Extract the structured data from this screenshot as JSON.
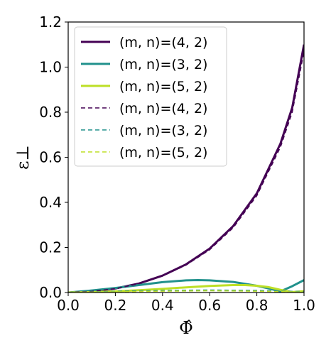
{
  "chart_data": {
    "type": "line",
    "xlabel": "Φ̂",
    "ylabel": "ε⊥",
    "xlim": [
      0.0,
      1.0
    ],
    "ylim": [
      0.0,
      1.2
    ],
    "xticks": [
      "0.0",
      "0.2",
      "0.4",
      "0.6",
      "0.8",
      "1.0"
    ],
    "yticks": [
      "0.0",
      "0.2",
      "0.4",
      "0.6",
      "0.8",
      "1.0",
      "1.2"
    ],
    "grid": false,
    "legend_position": "top-left",
    "series": [
      {
        "name": "(m, n)=(4, 2)",
        "style": "solid",
        "color": "#440154",
        "x": [
          0.0,
          0.1,
          0.2,
          0.3,
          0.4,
          0.5,
          0.6,
          0.7,
          0.8,
          0.9,
          0.95,
          1.0
        ],
        "y": [
          0.0,
          0.005,
          0.018,
          0.04,
          0.075,
          0.125,
          0.195,
          0.295,
          0.44,
          0.66,
          0.82,
          1.1
        ]
      },
      {
        "name": "(m, n)=(3, 2)",
        "style": "solid",
        "color": "#21918c",
        "x": [
          0.0,
          0.1,
          0.2,
          0.3,
          0.4,
          0.5,
          0.55,
          0.6,
          0.7,
          0.8,
          0.85,
          0.9,
          0.95,
          1.0
        ],
        "y": [
          0.0,
          0.009,
          0.02,
          0.033,
          0.046,
          0.054,
          0.055,
          0.054,
          0.047,
          0.03,
          0.018,
          0.005,
          0.028,
          0.055
        ]
      },
      {
        "name": "(m, n)=(5, 2)",
        "style": "solid",
        "color": "#bddf26",
        "x": [
          0.0,
          0.1,
          0.2,
          0.3,
          0.4,
          0.5,
          0.6,
          0.7,
          0.75,
          0.8,
          0.85,
          0.9,
          0.95,
          1.0
        ],
        "y": [
          0.0,
          0.002,
          0.005,
          0.01,
          0.016,
          0.023,
          0.029,
          0.033,
          0.033,
          0.03,
          0.024,
          0.012,
          0.002,
          0.006
        ]
      },
      {
        "name": "(m, n)=(4, 2)",
        "style": "dashed",
        "color": "#440154",
        "x": [
          0.0,
          0.1,
          0.2,
          0.3,
          0.4,
          0.5,
          0.6,
          0.7,
          0.8,
          0.9,
          0.95,
          1.0
        ],
        "y": [
          0.0,
          0.005,
          0.017,
          0.039,
          0.073,
          0.122,
          0.19,
          0.288,
          0.43,
          0.645,
          0.8,
          1.07
        ]
      },
      {
        "name": "(m, n)=(3, 2)",
        "style": "dashed",
        "color": "#21918c",
        "x": [
          0.0,
          0.2,
          0.4,
          0.6,
          0.8,
          0.9,
          1.0
        ],
        "y": [
          0.0,
          0.005,
          0.009,
          0.011,
          0.009,
          0.006,
          0.004
        ]
      },
      {
        "name": "(m, n)=(5, 2)",
        "style": "dashed",
        "color": "#bddf26",
        "x": [
          0.0,
          0.2,
          0.4,
          0.6,
          0.8,
          0.9,
          1.0
        ],
        "y": [
          0.0,
          0.003,
          0.006,
          0.008,
          0.006,
          0.004,
          0.002
        ]
      }
    ]
  }
}
